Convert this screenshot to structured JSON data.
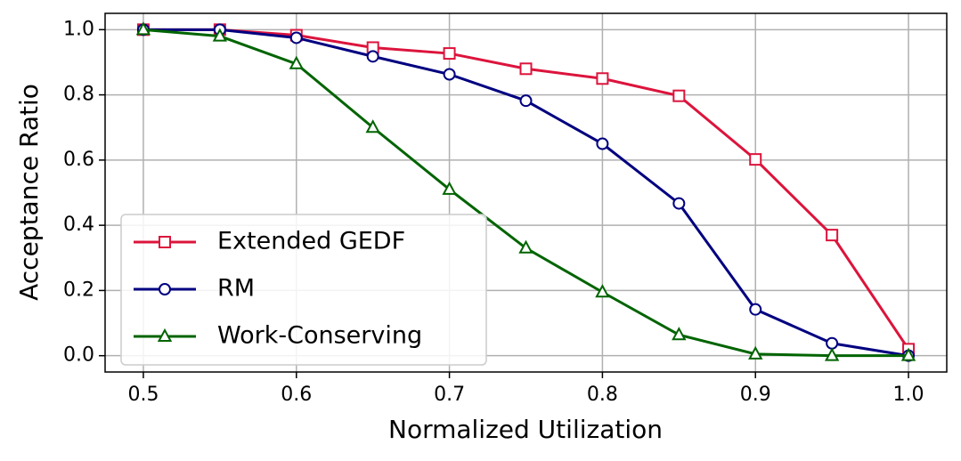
{
  "chart_data": {
    "type": "line",
    "xlabel": "Normalized Utilization",
    "ylabel": "Acceptance Ratio",
    "x": [
      0.5,
      0.55,
      0.6,
      0.65,
      0.7,
      0.75,
      0.8,
      0.85,
      0.9,
      0.95,
      1.0
    ],
    "series": [
      {
        "name": "Extended GEDF",
        "color": "#dc143c",
        "marker": "square",
        "values": [
          1.0,
          1.0,
          0.983,
          0.945,
          0.927,
          0.88,
          0.85,
          0.797,
          0.602,
          0.37,
          0.02
        ]
      },
      {
        "name": "RM",
        "color": "#000080",
        "marker": "circle",
        "values": [
          1.0,
          1.0,
          0.975,
          0.918,
          0.863,
          0.782,
          0.65,
          0.467,
          0.142,
          0.038,
          0.0
        ]
      },
      {
        "name": "Work-Conserving",
        "color": "#006400",
        "marker": "triangle",
        "values": [
          1.0,
          0.98,
          0.895,
          0.7,
          0.51,
          0.33,
          0.195,
          0.064,
          0.005,
          0.0,
          0.0
        ]
      }
    ],
    "xlim": [
      0.475,
      1.025
    ],
    "ylim": [
      -0.05,
      1.05
    ],
    "xticks": [
      0.5,
      0.6,
      0.7,
      0.8,
      0.9,
      {
        "value": 1,
        "label": "1.0"
      }
    ],
    "yticks": [
      {
        "value": 0,
        "label": "0.0"
      },
      0.2,
      0.4,
      0.6,
      0.8,
      {
        "value": 1,
        "label": "1.0"
      }
    ],
    "grid": true,
    "legend": "lower left"
  }
}
